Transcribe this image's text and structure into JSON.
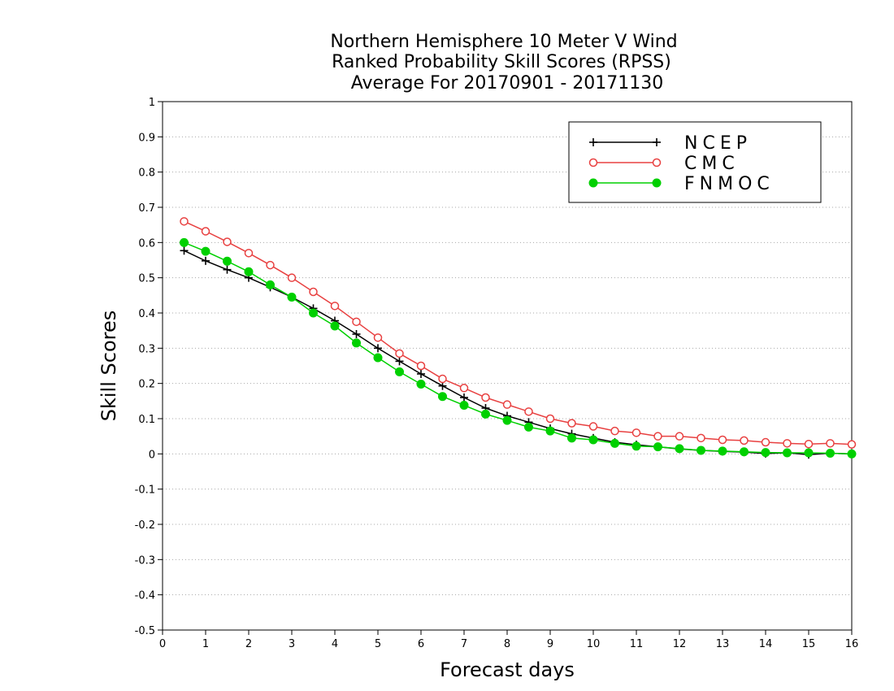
{
  "chart_data": {
    "type": "line",
    "title": [
      "Northern Hemisphere 10 Meter V Wind",
      "Ranked Probability Skill Scores (RPSS)",
      "Average For 20170901 - 20171130"
    ],
    "xlabel": "Forecast days",
    "ylabel": "Skill Scores",
    "xlim": [
      0,
      16
    ],
    "ylim": [
      -0.5,
      1
    ],
    "xticks": [
      "0",
      "1",
      "2",
      "3",
      "4",
      "5",
      "6",
      "7",
      "8",
      "9",
      "10",
      "11",
      "12",
      "13",
      "14",
      "15",
      "16"
    ],
    "yticks": [
      "-0.5",
      "-0.4",
      "-0.3",
      "-0.2",
      "-0.1",
      "0",
      "0.1",
      "0.2",
      "0.3",
      "0.4",
      "0.5",
      "0.6",
      "0.7",
      "0.8",
      "0.9",
      "1"
    ],
    "grid": "horizontal dotted",
    "legend_position": "top-right",
    "x": [
      0.5,
      1,
      1.5,
      2,
      2.5,
      3,
      3.5,
      4,
      4.5,
      5,
      5.5,
      6,
      6.5,
      7,
      7.5,
      8,
      8.5,
      9,
      9.5,
      10,
      10.5,
      11,
      11.5,
      12,
      12.5,
      13,
      13.5,
      14,
      14.5,
      15,
      15.5,
      16
    ],
    "series": [
      {
        "name": "NCEP",
        "color": "#000000",
        "marker": "plus",
        "values": [
          0.577,
          0.548,
          0.523,
          0.5,
          0.473,
          0.445,
          0.413,
          0.378,
          0.34,
          0.3,
          0.263,
          0.227,
          0.193,
          0.16,
          0.13,
          0.108,
          0.09,
          0.072,
          0.057,
          0.045,
          0.033,
          0.026,
          0.02,
          0.014,
          0.01,
          0.007,
          0.005,
          0.001,
          0.003,
          -0.002,
          0.002,
          0.0
        ]
      },
      {
        "name": "CMC",
        "color": "#e84040",
        "marker": "open-circle",
        "values": [
          0.66,
          0.632,
          0.602,
          0.57,
          0.536,
          0.5,
          0.46,
          0.42,
          0.375,
          0.33,
          0.285,
          0.25,
          0.213,
          0.187,
          0.16,
          0.14,
          0.12,
          0.1,
          0.087,
          0.078,
          0.065,
          0.06,
          0.05,
          0.05,
          0.045,
          0.04,
          0.038,
          0.033,
          0.03,
          0.028,
          0.03,
          0.027
        ]
      },
      {
        "name": "FNMOC",
        "color": "#00d000",
        "marker": "filled-circle",
        "values": [
          0.6,
          0.575,
          0.547,
          0.517,
          0.48,
          0.445,
          0.4,
          0.363,
          0.315,
          0.273,
          0.233,
          0.198,
          0.163,
          0.138,
          0.113,
          0.095,
          0.076,
          0.065,
          0.045,
          0.04,
          0.03,
          0.022,
          0.02,
          0.015,
          0.01,
          0.008,
          0.006,
          0.004,
          0.003,
          0.003,
          0.002,
          0.0
        ]
      }
    ]
  }
}
